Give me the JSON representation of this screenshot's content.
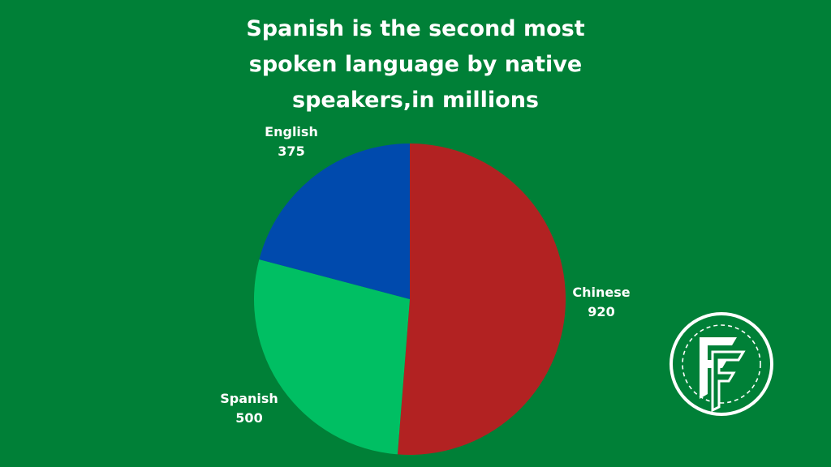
{
  "chart_data": {
    "type": "pie",
    "title_lines": [
      "Spanish is the second most",
      "spoken language by native",
      "speakers,in millions"
    ],
    "slices": [
      {
        "label": "Chinese",
        "value": 920,
        "value_text": "920",
        "color": "#B22222"
      },
      {
        "label": "Spanish",
        "value": 500,
        "value_text": "500",
        "color": "#00BF63"
      },
      {
        "label": "English",
        "value": 375,
        "value_text": "375",
        "color": "#004AAD"
      }
    ],
    "start_position": "12 o'clock",
    "direction": "clockwise",
    "legend": "none"
  },
  "colors": {
    "background": "#008037",
    "text": "#FFFFFF"
  },
  "logo": {
    "icon": "fp-monogram-logo"
  }
}
